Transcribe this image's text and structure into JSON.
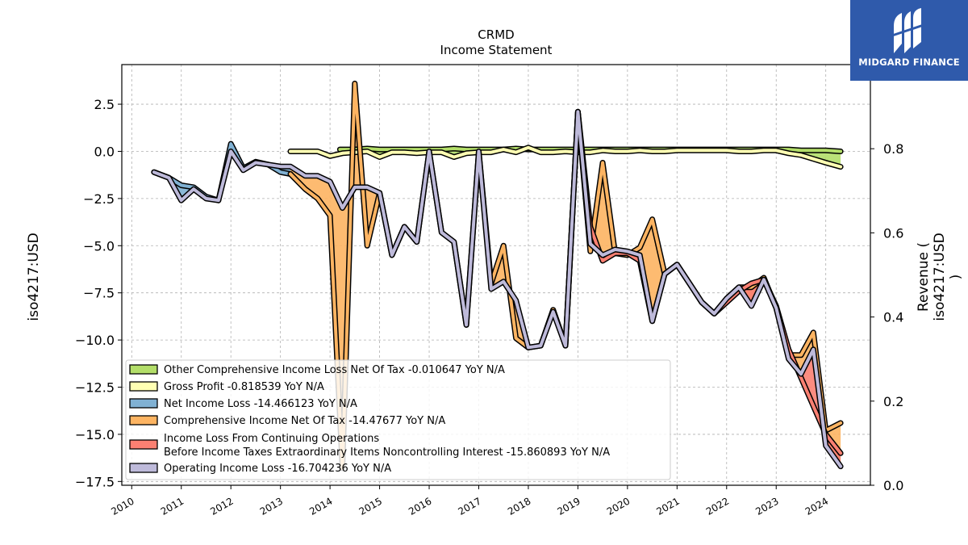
{
  "chart_data": {
    "type": "line",
    "title": "CRMD",
    "subtitle": "Income Statement",
    "ylabel": "iso4217:USD",
    "ylabel_right": [
      "Revenue (",
      "iso4217:USD",
      ")"
    ],
    "ylim": [
      -17.7,
      4.6
    ],
    "ylim_right": [
      0.0,
      1.0
    ],
    "xlim": [
      2009.8,
      2024.9
    ],
    "yticks": [
      "2.5",
      "0.0",
      "−2.5",
      "−5.0",
      "−7.5",
      "−10.0",
      "−12.5",
      "−15.0",
      "−17.5"
    ],
    "yticks_right": [
      "0.8",
      "0.6",
      "0.4",
      "0.2",
      "0.0"
    ],
    "xticks": [
      "2010",
      "2011",
      "2012",
      "2013",
      "2014",
      "2015",
      "2016",
      "2017",
      "2018",
      "2019",
      "2020",
      "2021",
      "2022",
      "2023",
      "2024"
    ],
    "grid": true,
    "legend_position": "lower-left",
    "series": [
      {
        "name": "Other Comprehensive Income Loss Net Of Tax  -0.010647 YoY N/A",
        "color": "#b3de69",
        "x": [
          2014.2,
          2014.5,
          2014.75,
          2015.0,
          2015.25,
          2015.5,
          2015.75,
          2016.0,
          2016.25,
          2016.5,
          2016.75,
          2017.0,
          2017.25,
          2017.5,
          2017.75,
          2018.0,
          2018.25,
          2018.5,
          2018.75,
          2019.0,
          2019.25,
          2019.5,
          2019.75,
          2020.0,
          2020.25,
          2020.5,
          2020.75,
          2021.0,
          2021.25,
          2021.5,
          2021.75,
          2022.0,
          2022.25,
          2022.5,
          2022.75,
          2023.0,
          2023.25,
          2023.5,
          2023.75,
          2024.0,
          2024.3
        ],
        "y": [
          0.1,
          0.1,
          0.15,
          0.1,
          0.1,
          0.1,
          0.1,
          0.1,
          0.1,
          0.15,
          0.1,
          0.1,
          0.1,
          0.1,
          0.15,
          0.1,
          0.1,
          0.1,
          0.1,
          0.1,
          0.1,
          0.1,
          0.1,
          0.1,
          0.1,
          0.1,
          0.1,
          0.1,
          0.1,
          0.1,
          0.1,
          0.1,
          0.1,
          0.1,
          0.1,
          0.1,
          0.1,
          0.05,
          0.05,
          0.05,
          0.0
        ]
      },
      {
        "name": "Gross Profit  -0.818539 YoY N/A",
        "color": "#ffffb3",
        "x": [
          2013.2,
          2013.5,
          2013.75,
          2014.0,
          2014.25,
          2014.5,
          2014.75,
          2015.0,
          2015.25,
          2015.5,
          2015.75,
          2016.0,
          2016.25,
          2016.5,
          2016.75,
          2017.0,
          2017.25,
          2017.5,
          2017.75,
          2018.0,
          2018.25,
          2018.5,
          2018.75,
          2019.0,
          2019.25,
          2019.5,
          2019.75,
          2020.0,
          2020.25,
          2020.5,
          2020.75,
          2021.0,
          2021.25,
          2021.5,
          2021.75,
          2022.0,
          2022.25,
          2022.5,
          2022.75,
          2023.0,
          2023.25,
          2023.5,
          2023.75,
          2024.0,
          2024.3
        ],
        "y": [
          0.0,
          0.0,
          0.0,
          -0.25,
          -0.1,
          -0.05,
          0.0,
          -0.3,
          -0.05,
          -0.05,
          -0.1,
          -0.05,
          -0.05,
          -0.3,
          -0.1,
          -0.05,
          -0.05,
          0.1,
          -0.05,
          0.2,
          -0.05,
          -0.05,
          0.0,
          -0.05,
          -0.05,
          0.05,
          0.0,
          0.0,
          0.05,
          0.0,
          0.0,
          0.05,
          0.05,
          0.05,
          0.05,
          0.05,
          0.0,
          0.0,
          0.05,
          0.05,
          -0.1,
          -0.2,
          -0.4,
          -0.6,
          -0.82
        ]
      },
      {
        "name": "Net Income Loss  -14.466123 YoY N/A",
        "color": "#80b1d3",
        "x": [
          2010.45,
          2010.75,
          2011.0,
          2011.25,
          2011.5,
          2011.75,
          2012.0,
          2012.25,
          2012.5,
          2012.75,
          2013.0,
          2013.2
        ],
        "y": [
          -1.1,
          -1.4,
          -1.8,
          -1.9,
          -2.4,
          -2.6,
          0.4,
          -0.9,
          -0.55,
          -0.7,
          -1.1,
          -1.2
        ]
      },
      {
        "name": "Comprehensive Income Net Of Tax  -14.47677 YoY N/A",
        "color": "#fdb462",
        "x": [
          2013.2,
          2013.5,
          2013.75,
          2014.0,
          2014.25,
          2014.5,
          2014.75,
          2015.0,
          2015.25,
          2015.5,
          2015.75,
          2016.0,
          2016.25,
          2016.5,
          2016.75,
          2017.0,
          2017.25,
          2017.5,
          2017.75,
          2018.0,
          2018.25,
          2018.5,
          2018.75,
          2019.0,
          2019.25,
          2019.5,
          2019.75,
          2020.0,
          2020.25,
          2020.5,
          2020.75,
          2021.0,
          2021.25,
          2021.5,
          2021.75,
          2022.0,
          2022.25,
          2022.5,
          2022.75,
          2023.0,
          2023.25,
          2023.5,
          2023.75,
          2024.0,
          2024.3
        ],
        "y": [
          -1.2,
          -2.0,
          -2.5,
          -3.4,
          -16.8,
          3.6,
          -5.0,
          -2.2,
          -5.5,
          -4.0,
          -4.8,
          0.0,
          -4.3,
          -4.8,
          -9.2,
          0.0,
          -7.0,
          -5.0,
          -9.9,
          -10.4,
          -10.3,
          -8.4,
          -10.3,
          2.1,
          -5.3,
          -0.6,
          -5.4,
          -5.5,
          -5.1,
          -3.6,
          -6.5,
          -6.0,
          -7.0,
          -8.0,
          -8.6,
          -7.8,
          -7.2,
          -7.2,
          -6.7,
          -8.3,
          -10.8,
          -10.8,
          -9.6,
          -14.8,
          -14.4
        ]
      },
      {
        "name": "Income Loss From Continuing Operations\nBefore Income Taxes Extraordinary Items Noncontrolling Interest  -15.860893 YoY N/A",
        "color": "#fb8072",
        "x": [
          2018.75,
          2019.0,
          2019.25,
          2019.5,
          2019.75,
          2020.0,
          2020.25,
          2020.5,
          2020.75,
          2021.0,
          2021.25,
          2021.5,
          2021.75,
          2022.0,
          2022.25,
          2022.5,
          2022.75,
          2023.0,
          2023.25,
          2023.5,
          2023.75,
          2024.0,
          2024.3
        ],
        "y": [
          -10.3,
          2.1,
          -4.0,
          -5.8,
          -5.4,
          -5.4,
          -5.8,
          -9.0,
          -6.5,
          -6.0,
          -7.0,
          -8.0,
          -8.6,
          -8.0,
          -7.4,
          -7.0,
          -6.8,
          -8.2,
          -10.5,
          -12.0,
          -13.5,
          -15.0,
          -16.0
        ]
      },
      {
        "name": "Operating Income Loss  -16.704236 YoY N/A",
        "color": "#bebada",
        "x": [
          2010.45,
          2010.75,
          2011.0,
          2011.25,
          2011.5,
          2011.75,
          2012.0,
          2012.25,
          2012.5,
          2012.75,
          2013.0,
          2013.2,
          2013.5,
          2013.75,
          2014.0,
          2014.25,
          2014.5,
          2014.75,
          2015.0,
          2015.25,
          2015.5,
          2015.75,
          2016.0,
          2016.25,
          2016.5,
          2016.75,
          2017.0,
          2017.25,
          2017.5,
          2017.75,
          2018.0,
          2018.25,
          2018.5,
          2018.75,
          2019.0,
          2019.25,
          2019.5,
          2019.75,
          2020.0,
          2020.25,
          2020.5,
          2020.75,
          2021.0,
          2021.25,
          2021.5,
          2021.75,
          2022.0,
          2022.25,
          2022.5,
          2022.75,
          2023.0,
          2023.25,
          2023.5,
          2023.75,
          2024.0,
          2024.3
        ],
        "y": [
          -1.1,
          -1.4,
          -2.6,
          -2.0,
          -2.5,
          -2.6,
          0.0,
          -1.0,
          -0.6,
          -0.7,
          -0.8,
          -0.8,
          -1.3,
          -1.3,
          -1.6,
          -3.0,
          -1.9,
          -1.9,
          -2.2,
          -5.5,
          -4.0,
          -4.8,
          0.0,
          -4.3,
          -4.8,
          -9.2,
          0.0,
          -7.3,
          -6.9,
          -7.9,
          -10.4,
          -10.3,
          -8.5,
          -10.3,
          2.1,
          -4.9,
          -5.5,
          -5.2,
          -5.3,
          -5.5,
          -9.0,
          -6.5,
          -6.0,
          -7.0,
          -8.0,
          -8.6,
          -7.8,
          -7.2,
          -8.2,
          -6.8,
          -8.3,
          -11.0,
          -11.8,
          -10.5,
          -15.6,
          -16.7
        ]
      }
    ]
  },
  "logo": {
    "text": "MIDGARD FINANCE",
    "icon": "midgard-finance-logo-icon",
    "color": "#2f5aab"
  }
}
